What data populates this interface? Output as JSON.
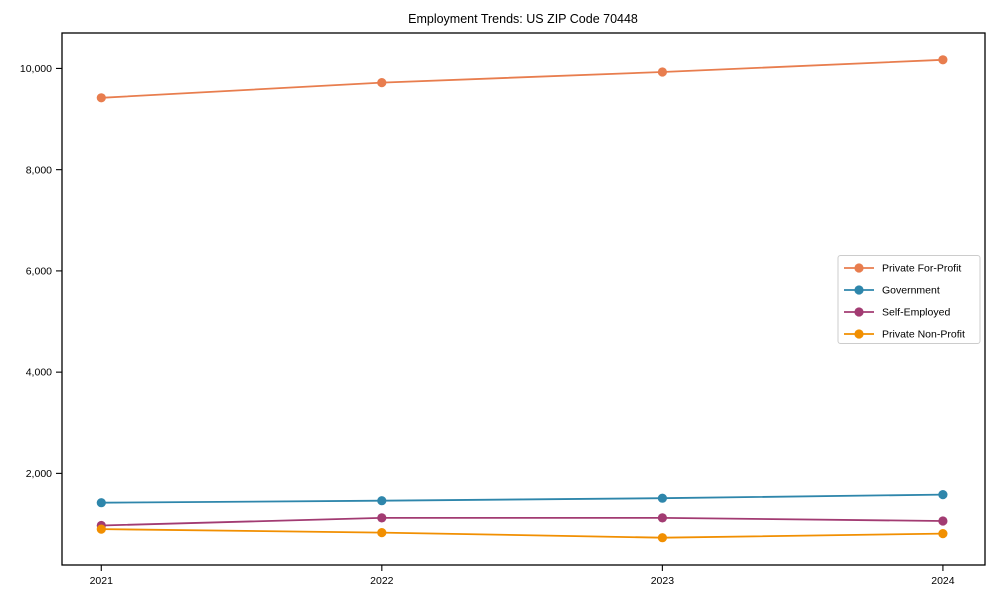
{
  "title": "Employment Trends: US ZIP Code 70448",
  "chart_data": {
    "type": "line",
    "title": "Employment Trends: US ZIP Code 70448",
    "xlabel": "",
    "ylabel": "",
    "x": [
      2021,
      2022,
      2023,
      2024
    ],
    "x_tick_labels": [
      "2021",
      "2022",
      "2023",
      "2024"
    ],
    "y_ticks": [
      2000,
      4000,
      6000,
      8000,
      10000
    ],
    "y_tick_labels": [
      "2,000",
      "4,000",
      "6,000",
      "8,000",
      "10,000"
    ],
    "xlim": [
      2020.86,
      2024.15
    ],
    "ylim": [
      190,
      10700
    ],
    "grid": false,
    "legend_position": "center-right",
    "marker": "circle",
    "series": [
      {
        "name": "Private For-Profit",
        "color": "#e87d4e",
        "values": [
          9420,
          9720,
          9930,
          10170
        ]
      },
      {
        "name": "Government",
        "color": "#2e86ab",
        "values": [
          1420,
          1460,
          1510,
          1580
        ]
      },
      {
        "name": "Self-Employed",
        "color": "#a23b72",
        "values": [
          970,
          1120,
          1120,
          1060
        ]
      },
      {
        "name": "Private Non-Profit",
        "color": "#f18f01",
        "values": [
          900,
          830,
          730,
          810
        ]
      }
    ],
    "legend_entries": [
      "Private For-Profit",
      "Government",
      "Self-Employed",
      "Private Non-Profit"
    ]
  },
  "colors": {
    "axis": "#000000",
    "background": "#ffffff",
    "legend_border": "#cccccc"
  }
}
